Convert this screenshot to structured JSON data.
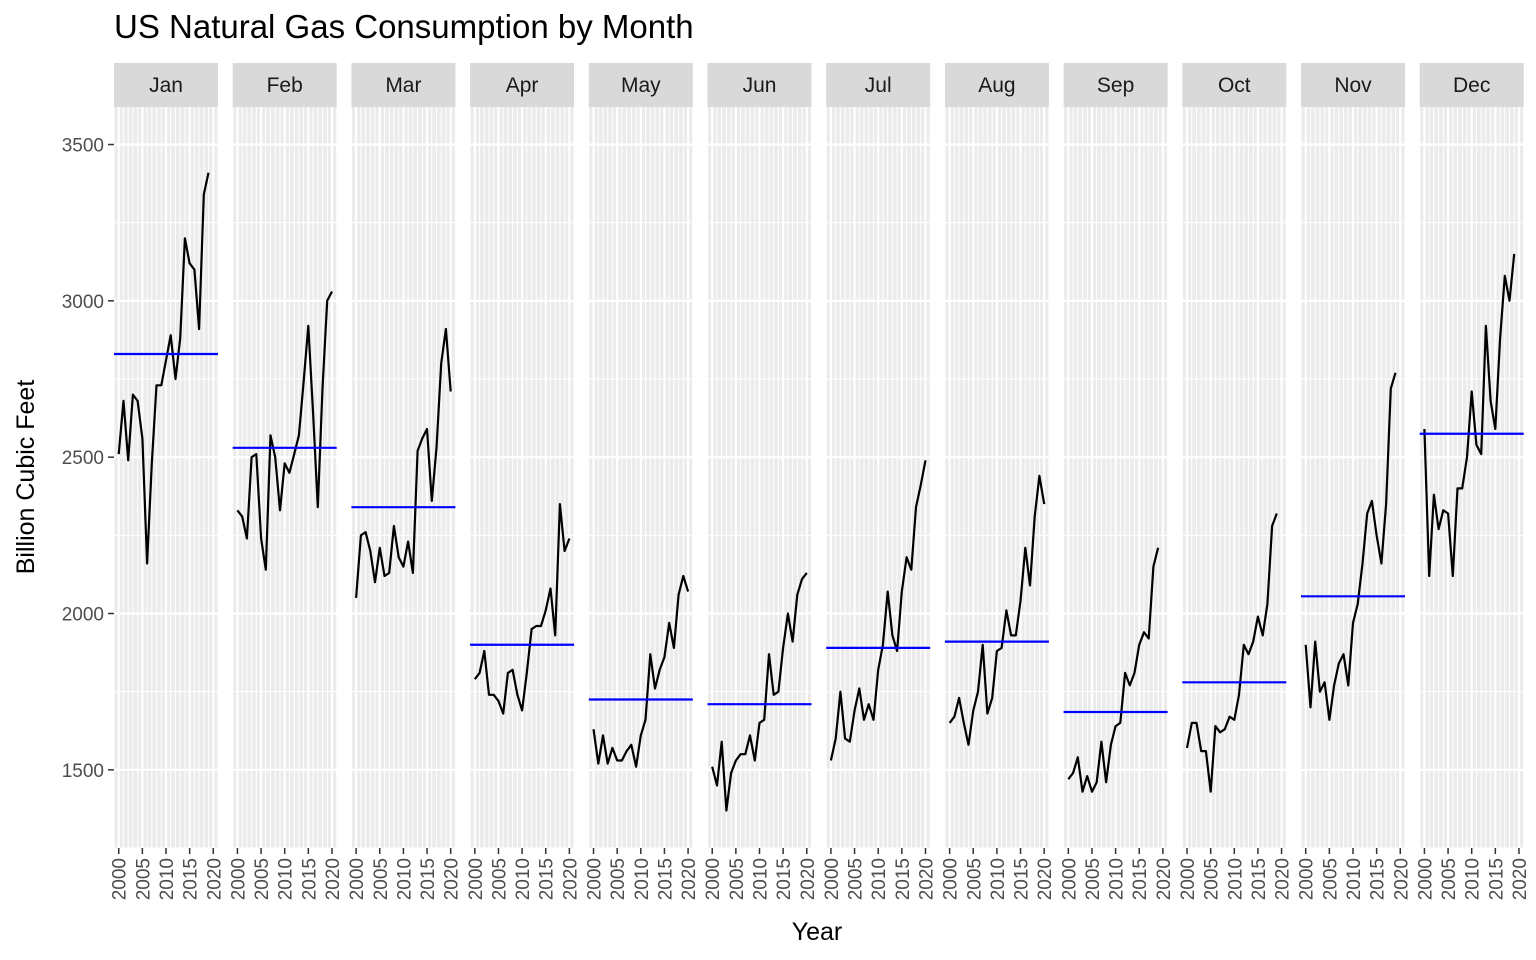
{
  "chart_data": {
    "type": "line",
    "title": "US Natural Gas Consumption by Month",
    "xlabel": "Year",
    "ylabel": "Billion Cubic Feet",
    "ylim": [
      1250,
      3620
    ],
    "xlim": [
      1999,
      2021
    ],
    "y_ticks": [
      1500,
      2000,
      2500,
      3000,
      3500
    ],
    "x_ticks": [
      2000,
      2005,
      2010,
      2015,
      2020
    ],
    "x_tick_labels": [
      "2000",
      "2005",
      "2010",
      "2015",
      "2020"
    ],
    "y_tick_labels": [
      "1500",
      "2000",
      "2500",
      "3000",
      "3500"
    ],
    "grid": true,
    "facet_by": "month",
    "mean_line_color": "#0000ff",
    "line_color": "#000000",
    "panel_bg": "#ebebeb",
    "strip_bg": "#d9d9d9",
    "facets": [
      {
        "month": "Jan",
        "mean": 2830,
        "x": [
          2000,
          2001,
          2002,
          2003,
          2004,
          2005,
          2006,
          2007,
          2008,
          2009,
          2010,
          2011,
          2012,
          2013,
          2014,
          2015,
          2016,
          2017,
          2018,
          2019
        ],
        "values": [
          2510,
          2680,
          2490,
          2700,
          2680,
          2560,
          2160,
          2480,
          2730,
          2730,
          2810,
          2890,
          2750,
          2880,
          3200,
          3120,
          3100,
          2910,
          3340,
          3410
        ]
      },
      {
        "month": "Feb",
        "mean": 2530,
        "x": [
          2000,
          2001,
          2002,
          2003,
          2004,
          2005,
          2006,
          2007,
          2008,
          2009,
          2010,
          2011,
          2012,
          2013,
          2014,
          2015,
          2016,
          2017,
          2018,
          2019,
          2020
        ],
        "values": [
          2330,
          2310,
          2240,
          2500,
          2510,
          2240,
          2140,
          2570,
          2500,
          2330,
          2480,
          2450,
          2510,
          2570,
          2740,
          2920,
          2640,
          2340,
          2720,
          3000,
          3030
        ]
      },
      {
        "month": "Mar",
        "mean": 2340,
        "x": [
          2000,
          2001,
          2002,
          2003,
          2004,
          2005,
          2006,
          2007,
          2008,
          2009,
          2010,
          2011,
          2012,
          2013,
          2014,
          2015,
          2016,
          2017,
          2018,
          2019,
          2020
        ],
        "values": [
          2050,
          2250,
          2260,
          2200,
          2100,
          2210,
          2120,
          2130,
          2280,
          2180,
          2150,
          2230,
          2130,
          2520,
          2560,
          2590,
          2360,
          2530,
          2800,
          2910,
          2710
        ]
      },
      {
        "month": "Apr",
        "mean": 1900,
        "x": [
          2000,
          2001,
          2002,
          2003,
          2004,
          2005,
          2006,
          2007,
          2008,
          2009,
          2010,
          2011,
          2012,
          2013,
          2014,
          2015,
          2016,
          2017,
          2018,
          2019,
          2020
        ],
        "values": [
          1790,
          1810,
          1880,
          1740,
          1740,
          1720,
          1680,
          1810,
          1820,
          1740,
          1690,
          1810,
          1950,
          1960,
          1960,
          2010,
          2080,
          1930,
          2350,
          2200,
          2240
        ]
      },
      {
        "month": "May",
        "mean": 1725,
        "x": [
          2000,
          2001,
          2002,
          2003,
          2004,
          2005,
          2006,
          2007,
          2008,
          2009,
          2010,
          2011,
          2012,
          2013,
          2014,
          2015,
          2016,
          2017,
          2018,
          2019,
          2020
        ],
        "values": [
          1630,
          1520,
          1610,
          1520,
          1570,
          1530,
          1530,
          1560,
          1580,
          1510,
          1610,
          1660,
          1870,
          1760,
          1820,
          1860,
          1970,
          1890,
          2060,
          2120,
          2070
        ]
      },
      {
        "month": "Jun",
        "mean": 1710,
        "x": [
          2000,
          2001,
          2002,
          2003,
          2004,
          2005,
          2006,
          2007,
          2008,
          2009,
          2010,
          2011,
          2012,
          2013,
          2014,
          2015,
          2016,
          2017,
          2018,
          2019,
          2020
        ],
        "values": [
          1510,
          1450,
          1590,
          1370,
          1490,
          1530,
          1550,
          1550,
          1610,
          1530,
          1650,
          1660,
          1870,
          1740,
          1750,
          1890,
          2000,
          1910,
          2060,
          2110,
          2130
        ]
      },
      {
        "month": "Jul",
        "mean": 1890,
        "x": [
          2000,
          2001,
          2002,
          2003,
          2004,
          2005,
          2006,
          2007,
          2008,
          2009,
          2010,
          2011,
          2012,
          2013,
          2014,
          2015,
          2016,
          2017,
          2018,
          2019,
          2020
        ],
        "values": [
          1530,
          1600,
          1750,
          1600,
          1590,
          1690,
          1760,
          1660,
          1710,
          1660,
          1820,
          1900,
          2070,
          1930,
          1880,
          2070,
          2180,
          2140,
          2340,
          2410,
          2490
        ]
      },
      {
        "month": "Aug",
        "mean": 1910,
        "x": [
          2000,
          2001,
          2002,
          2003,
          2004,
          2005,
          2006,
          2007,
          2008,
          2009,
          2010,
          2011,
          2012,
          2013,
          2014,
          2015,
          2016,
          2017,
          2018,
          2019,
          2020
        ],
        "values": [
          1650,
          1670,
          1730,
          1650,
          1580,
          1690,
          1750,
          1900,
          1680,
          1730,
          1880,
          1890,
          2010,
          1930,
          1930,
          2040,
          2210,
          2090,
          2310,
          2440,
          2350
        ]
      },
      {
        "month": "Sep",
        "mean": 1685,
        "x": [
          2000,
          2001,
          2002,
          2003,
          2004,
          2005,
          2006,
          2007,
          2008,
          2009,
          2010,
          2011,
          2012,
          2013,
          2014,
          2015,
          2016,
          2017,
          2018,
          2019,
          2020
        ],
        "values": [
          1470,
          1490,
          1540,
          1430,
          1480,
          1430,
          1460,
          1590,
          1460,
          1580,
          1640,
          1650,
          1810,
          1770,
          1810,
          1900,
          1940,
          1920,
          2150,
          2210,
          null
        ]
      },
      {
        "month": "Oct",
        "mean": 1780,
        "x": [
          2000,
          2001,
          2002,
          2003,
          2004,
          2005,
          2006,
          2007,
          2008,
          2009,
          2010,
          2011,
          2012,
          2013,
          2014,
          2015,
          2016,
          2017,
          2018,
          2019,
          2020
        ],
        "values": [
          1570,
          1650,
          1650,
          1560,
          1560,
          1430,
          1640,
          1620,
          1630,
          1670,
          1660,
          1740,
          1900,
          1870,
          1910,
          1990,
          1930,
          2030,
          2280,
          2320,
          null
        ]
      },
      {
        "month": "Nov",
        "mean": 2055,
        "x": [
          2000,
          2001,
          2002,
          2003,
          2004,
          2005,
          2006,
          2007,
          2008,
          2009,
          2010,
          2011,
          2012,
          2013,
          2014,
          2015,
          2016,
          2017,
          2018,
          2019,
          2020
        ],
        "values": [
          1900,
          1700,
          1910,
          1750,
          1780,
          1660,
          1770,
          1840,
          1870,
          1770,
          1970,
          2030,
          2160,
          2320,
          2360,
          2250,
          2160,
          2350,
          2720,
          2770,
          null
        ]
      },
      {
        "month": "Dec",
        "mean": 2575,
        "x": [
          2000,
          2001,
          2002,
          2003,
          2004,
          2005,
          2006,
          2007,
          2008,
          2009,
          2010,
          2011,
          2012,
          2013,
          2014,
          2015,
          2016,
          2017,
          2018,
          2019,
          2020
        ],
        "values": [
          2590,
          2120,
          2380,
          2270,
          2330,
          2320,
          2120,
          2400,
          2400,
          2500,
          2710,
          2540,
          2510,
          2920,
          2680,
          2590,
          2880,
          3080,
          3000,
          3150,
          null
        ]
      }
    ]
  }
}
